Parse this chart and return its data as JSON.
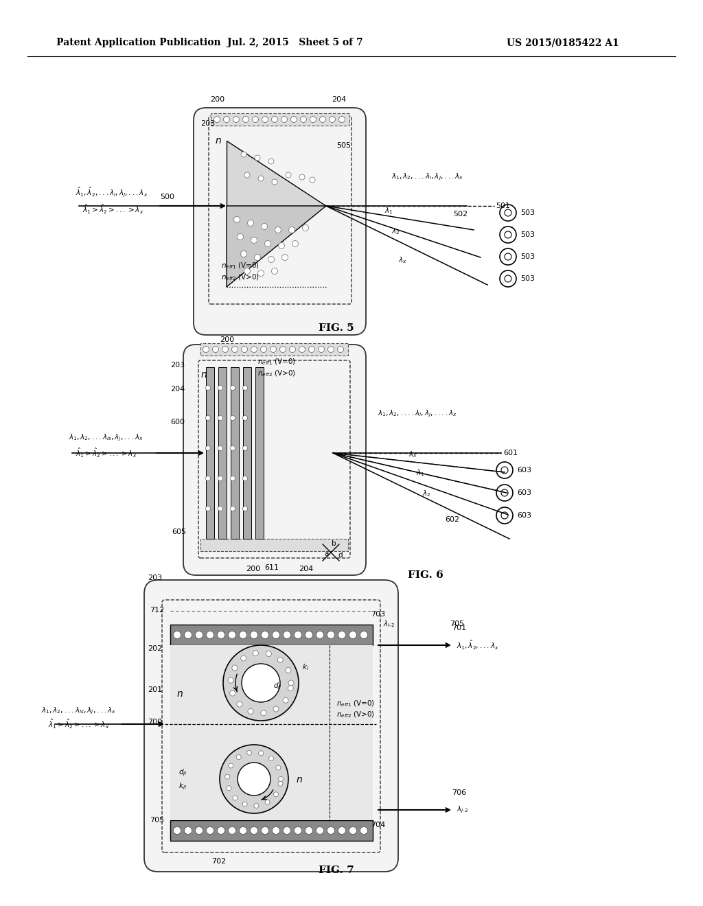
{
  "bg_color": "#ffffff",
  "header_left": "Patent Application Publication",
  "header_mid": "Jul. 2, 2015   Sheet 5 of 7",
  "header_right": "US 2015/0185422 A1"
}
